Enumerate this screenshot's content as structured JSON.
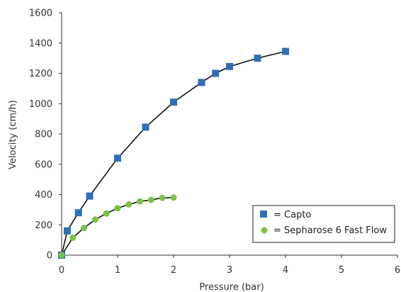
{
  "chart_data": {
    "type": "scatter",
    "xlabel": "Pressure (bar)",
    "ylabel": "Velocity (cm/h)",
    "xlim": [
      0,
      6
    ],
    "ylim": [
      0,
      1600
    ],
    "xticks": [
      "0",
      "1",
      "2",
      "3",
      "4",
      "5",
      "6"
    ],
    "yticks": [
      "0",
      "200",
      "400",
      "600",
      "800",
      "1000",
      "1200",
      "1400",
      "1600"
    ],
    "grid": false,
    "legend_position": "bottom-right",
    "series": [
      {
        "name": "= Capto",
        "marker": "square",
        "color": "#2e6fba",
        "line": true,
        "points": [
          [
            0,
            0
          ],
          [
            0.1,
            160
          ],
          [
            0.3,
            280
          ],
          [
            0.5,
            390
          ],
          [
            1.0,
            640
          ],
          [
            1.5,
            845
          ],
          [
            2.0,
            1010
          ],
          [
            2.5,
            1140
          ],
          [
            2.75,
            1200
          ],
          [
            3.0,
            1245
          ],
          [
            3.5,
            1300
          ],
          [
            4.0,
            1345
          ]
        ]
      },
      {
        "name": "= Sepharose 6 Fast Flow",
        "marker": "circle",
        "color": "#7dc242",
        "line": true,
        "points": [
          [
            0,
            0
          ],
          [
            0.2,
            115
          ],
          [
            0.4,
            180
          ],
          [
            0.6,
            235
          ],
          [
            0.8,
            275
          ],
          [
            1.0,
            310
          ],
          [
            1.2,
            335
          ],
          [
            1.4,
            355
          ],
          [
            1.6,
            365
          ],
          [
            1.8,
            378
          ],
          [
            2.0,
            380
          ]
        ]
      }
    ]
  }
}
